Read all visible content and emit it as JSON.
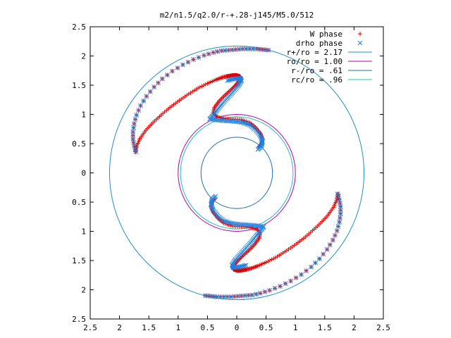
{
  "chart_data": {
    "type": "scatter",
    "title": "m2/n1.5/q2.0/r-+.28-j145/M5.0/512",
    "xlabel": "",
    "ylabel": "",
    "xlim": [
      -2.5,
      2.5
    ],
    "ylim": [
      -2.5,
      2.5
    ],
    "x_ticks": [
      "2.5",
      "2",
      "1.5",
      "1",
      "0.5",
      "0",
      "0.5",
      "1",
      "1.5",
      "2",
      "2.5"
    ],
    "y_ticks": [
      "2.5",
      "2",
      "1.5",
      "1",
      "0.5",
      "0",
      "0.5",
      "1",
      "1.5",
      "2",
      "2.5"
    ],
    "grid": false,
    "legend_position": "top-right",
    "circles": [
      {
        "name": "r+/ro = 2.17",
        "radius": 2.17,
        "color": "#1f8fc8"
      },
      {
        "name": "ro/ro = 1.00",
        "radius": 1.0,
        "color": "#b000b0"
      },
      {
        "name": "r-/ro = .61",
        "radius": 0.61,
        "color": "#1f6fb0"
      },
      {
        "name": "rc/ro = .96",
        "radius": 0.96,
        "color": "#20c0c0"
      }
    ],
    "series": [
      {
        "name": "W phase",
        "marker": "+",
        "color": "#e00000",
        "arms": [
          [
            [
              0.54,
              2.1
            ],
            [
              0.44,
              2.11
            ],
            [
              0.34,
              2.12
            ],
            [
              0.22,
              2.12
            ],
            [
              0.1,
              2.12
            ],
            [
              -0.02,
              2.11
            ],
            [
              -0.14,
              2.1
            ],
            [
              -0.26,
              2.09
            ],
            [
              -0.4,
              2.06
            ],
            [
              -0.56,
              2.01
            ],
            [
              -0.74,
              1.94
            ],
            [
              -0.92,
              1.85
            ],
            [
              -1.1,
              1.74
            ],
            [
              -1.27,
              1.61
            ],
            [
              -1.41,
              1.47
            ],
            [
              -1.54,
              1.31
            ],
            [
              -1.64,
              1.15
            ],
            [
              -1.71,
              0.99
            ],
            [
              -1.75,
              0.84
            ],
            [
              -1.77,
              0.7
            ],
            [
              -1.77,
              0.58
            ],
            [
              -1.75,
              0.46
            ],
            [
              -1.72,
              0.36
            ]
          ],
          [
            [
              0.0,
              1.67
            ],
            [
              -0.06,
              1.67
            ],
            [
              -0.12,
              1.66
            ],
            [
              -0.18,
              1.65
            ],
            [
              -0.26,
              1.63
            ],
            [
              -0.36,
              1.59
            ],
            [
              -0.5,
              1.53
            ],
            [
              -0.66,
              1.45
            ],
            [
              -0.82,
              1.35
            ],
            [
              -0.98,
              1.24
            ],
            [
              -1.14,
              1.12
            ],
            [
              -1.29,
              0.99
            ],
            [
              -1.43,
              0.86
            ],
            [
              -1.55,
              0.73
            ],
            [
              -1.65,
              0.59
            ],
            [
              -1.71,
              0.45
            ],
            [
              -1.73,
              0.36
            ]
          ],
          [
            [
              0.0,
              1.67
            ],
            [
              0.06,
              1.65
            ],
            [
              0.04,
              1.58
            ],
            [
              -0.02,
              1.5
            ],
            [
              -0.1,
              1.42
            ],
            [
              -0.2,
              1.33
            ],
            [
              -0.3,
              1.23
            ],
            [
              -0.38,
              1.12
            ],
            [
              -0.4,
              1.02
            ],
            [
              -0.34,
              0.96
            ],
            [
              -0.22,
              0.93
            ],
            [
              -0.08,
              0.92
            ],
            [
              0.08,
              0.91
            ],
            [
              0.22,
              0.86
            ],
            [
              0.32,
              0.78
            ],
            [
              0.4,
              0.68
            ],
            [
              0.44,
              0.58
            ],
            [
              0.42,
              0.5
            ],
            [
              0.38,
              0.44
            ]
          ]
        ]
      },
      {
        "name": "drho phase",
        "marker": "x",
        "color": "#2080e0",
        "arms": [
          [
            [
              0.54,
              2.1
            ],
            [
              0.44,
              2.11
            ],
            [
              0.34,
              2.12
            ],
            [
              0.22,
              2.12
            ],
            [
              0.1,
              2.12
            ],
            [
              -0.02,
              2.11
            ],
            [
              -0.14,
              2.1
            ],
            [
              -0.26,
              2.09
            ],
            [
              -0.4,
              2.06
            ],
            [
              -0.56,
              2.01
            ],
            [
              -0.74,
              1.94
            ],
            [
              -0.92,
              1.85
            ],
            [
              -1.1,
              1.74
            ],
            [
              -1.27,
              1.61
            ],
            [
              -1.41,
              1.47
            ],
            [
              -1.54,
              1.31
            ],
            [
              -1.64,
              1.15
            ],
            [
              -1.71,
              0.99
            ],
            [
              -1.75,
              0.84
            ],
            [
              -1.77,
              0.7
            ],
            [
              -1.77,
              0.58
            ],
            [
              -1.75,
              0.46
            ],
            [
              -1.72,
              0.36
            ]
          ],
          [
            [
              -0.46,
              0.92
            ],
            [
              -0.4,
              0.99
            ],
            [
              -0.33,
              1.08
            ],
            [
              -0.25,
              1.18
            ],
            [
              -0.16,
              1.28
            ],
            [
              -0.07,
              1.38
            ],
            [
              0.02,
              1.48
            ],
            [
              0.08,
              1.57
            ],
            [
              0.06,
              1.62
            ],
            [
              -0.04,
              1.61
            ],
            [
              -0.16,
              1.58
            ]
          ],
          [
            [
              -0.46,
              0.92
            ],
            [
              -0.32,
              0.9
            ],
            [
              -0.18,
              0.89
            ],
            [
              -0.04,
              0.88
            ],
            [
              0.1,
              0.86
            ],
            [
              0.22,
              0.82
            ],
            [
              0.32,
              0.74
            ],
            [
              0.4,
              0.64
            ],
            [
              0.44,
              0.54
            ],
            [
              0.42,
              0.46
            ],
            [
              0.36,
              0.4
            ]
          ]
        ]
      }
    ]
  }
}
